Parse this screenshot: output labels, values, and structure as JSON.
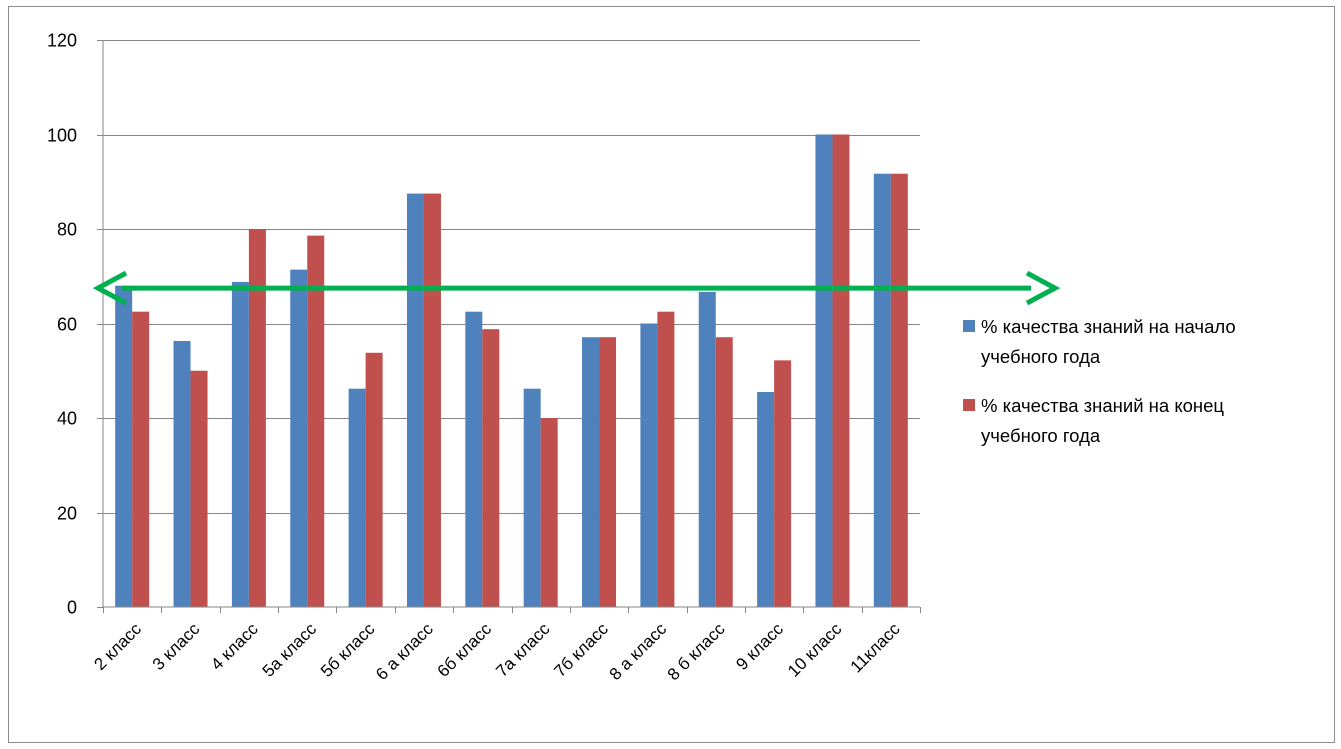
{
  "chart_data": {
    "type": "bar",
    "title": "",
    "xlabel": "",
    "ylabel": "",
    "ylim": [
      0,
      120
    ],
    "yticks": [
      0,
      20,
      40,
      60,
      80,
      100,
      120
    ],
    "grid": true,
    "legend_position": "right",
    "categories": [
      "2 класс",
      "3 класс",
      "4 класс",
      "5а класс",
      "5б класс",
      "6 а класс",
      "6б класс",
      "7а класс",
      "7б класс",
      "8 а класс",
      "8 б класс",
      "9 класс",
      "10 класс",
      "11класс"
    ],
    "series": [
      {
        "name": "% качества знаний на начало учебного года",
        "legend_lines": [
          "% качества знаний на начало",
          "учебного года"
        ],
        "color": "#4f81bd",
        "values": [
          68,
          56.3,
          68.8,
          71.4,
          46.2,
          87.5,
          62.5,
          46.2,
          57.1,
          60,
          66.7,
          45.5,
          100,
          91.7
        ]
      },
      {
        "name": "% качества знаний на конец учебного года",
        "legend_lines": [
          "% качества знаний на конец",
          "учебного года"
        ],
        "color": "#c0504d",
        "values": [
          62.5,
          50,
          80,
          78.6,
          53.8,
          87.5,
          58.8,
          40,
          57.1,
          62.5,
          57.1,
          52.2,
          100,
          91.7
        ]
      }
    ],
    "annotations": [
      {
        "type": "double-arrow",
        "y": 67.5,
        "color": "#00b050"
      }
    ]
  }
}
